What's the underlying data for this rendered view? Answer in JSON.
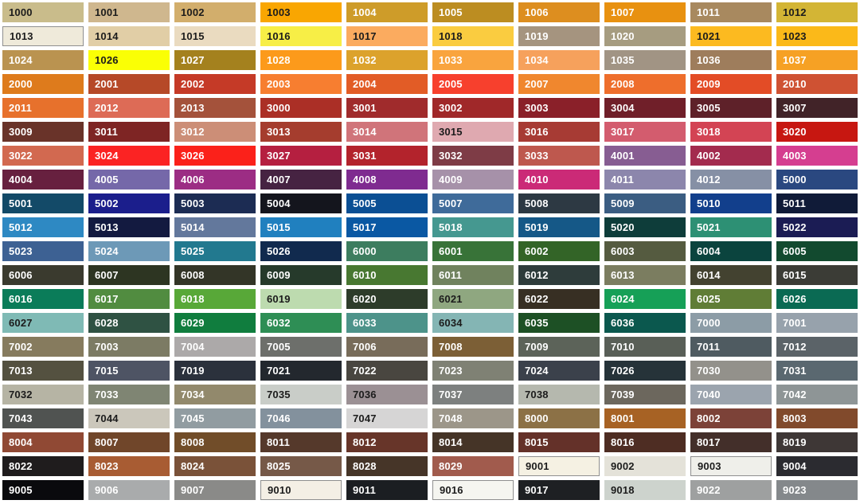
{
  "page": {
    "background": "#FFFFFF"
  },
  "grid": {
    "columns": 10,
    "rows": 21
  },
  "text_colors": {
    "dark": "#1C1C1C",
    "light": "#FFFFFF"
  },
  "light_swatch_border_color": "#8F8F8F",
  "swatches": [
    {
      "code": "1000",
      "color": "#C9BC8B",
      "text": "dark"
    },
    {
      "code": "1001",
      "color": "#CFB78E",
      "text": "dark"
    },
    {
      "code": "1002",
      "color": "#D2AE6C",
      "text": "dark"
    },
    {
      "code": "1003",
      "color": "#F9A602",
      "text": "dark"
    },
    {
      "code": "1004",
      "color": "#CE9C29",
      "text": "light"
    },
    {
      "code": "1005",
      "color": "#BC8D21",
      "text": "light"
    },
    {
      "code": "1006",
      "color": "#DD8E1F",
      "text": "light"
    },
    {
      "code": "1007",
      "color": "#E89110",
      "text": "light"
    },
    {
      "code": "1011",
      "color": "#A8895F",
      "text": "light"
    },
    {
      "code": "1012",
      "color": "#D3B535",
      "text": "dark"
    },
    {
      "code": "1013",
      "color": "#EFEADA",
      "text": "dark"
    },
    {
      "code": "1014",
      "color": "#E1CEA6",
      "text": "dark"
    },
    {
      "code": "1015",
      "color": "#EADBC0",
      "text": "dark"
    },
    {
      "code": "1016",
      "color": "#F7EE46",
      "text": "dark"
    },
    {
      "code": "1017",
      "color": "#FBAB5F",
      "text": "dark"
    },
    {
      "code": "1018",
      "color": "#FACC40",
      "text": "dark"
    },
    {
      "code": "1019",
      "color": "#A5947F",
      "text": "light"
    },
    {
      "code": "1020",
      "color": "#A69C80",
      "text": "light"
    },
    {
      "code": "1021",
      "color": "#FCBA20",
      "text": "dark"
    },
    {
      "code": "1023",
      "color": "#FBB919",
      "text": "dark"
    },
    {
      "code": "1024",
      "color": "#BA9350",
      "text": "light"
    },
    {
      "code": "1026",
      "color": "#FAFF05",
      "text": "dark"
    },
    {
      "code": "1027",
      "color": "#A4811E",
      "text": "light"
    },
    {
      "code": "1028",
      "color": "#FC9A1B",
      "text": "light"
    },
    {
      "code": "1032",
      "color": "#DCA22C",
      "text": "light"
    },
    {
      "code": "1033",
      "color": "#F9A43E",
      "text": "light"
    },
    {
      "code": "1034",
      "color": "#F6A15C",
      "text": "light"
    },
    {
      "code": "1035",
      "color": "#A19484",
      "text": "light"
    },
    {
      "code": "1036",
      "color": "#9E7D5C",
      "text": "light"
    },
    {
      "code": "1037",
      "color": "#F6A124",
      "text": "light"
    },
    {
      "code": "2000",
      "color": "#DE7B1C",
      "text": "light"
    },
    {
      "code": "2001",
      "color": "#B64928",
      "text": "light"
    },
    {
      "code": "2002",
      "color": "#C53A27",
      "text": "light"
    },
    {
      "code": "2003",
      "color": "#F77E30",
      "text": "light"
    },
    {
      "code": "2004",
      "color": "#E25C26",
      "text": "light"
    },
    {
      "code": "2005",
      "color": "#F7402D",
      "text": "light"
    },
    {
      "code": "2007",
      "color": "#F0872E",
      "text": "light"
    },
    {
      "code": "2008",
      "color": "#EE6E2C",
      "text": "light"
    },
    {
      "code": "2009",
      "color": "#E34C26",
      "text": "light"
    },
    {
      "code": "2010",
      "color": "#CF5233",
      "text": "light"
    },
    {
      "code": "2011",
      "color": "#E7712C",
      "text": "light"
    },
    {
      "code": "2012",
      "color": "#DD6B56",
      "text": "light"
    },
    {
      "code": "2013",
      "color": "#A4523B",
      "text": "light"
    },
    {
      "code": "3000",
      "color": "#AB2F26",
      "text": "light"
    },
    {
      "code": "3001",
      "color": "#A02B2C",
      "text": "light"
    },
    {
      "code": "3002",
      "color": "#A02829",
      "text": "light"
    },
    {
      "code": "3003",
      "color": "#8A2029",
      "text": "light"
    },
    {
      "code": "3004",
      "color": "#701F29",
      "text": "light"
    },
    {
      "code": "3005",
      "color": "#5E2129",
      "text": "light"
    },
    {
      "code": "3007",
      "color": "#412328",
      "text": "light"
    },
    {
      "code": "3009",
      "color": "#693329",
      "text": "light"
    },
    {
      "code": "3011",
      "color": "#7E2524",
      "text": "light"
    },
    {
      "code": "3012",
      "color": "#CC8E77",
      "text": "light"
    },
    {
      "code": "3013",
      "color": "#A53D2E",
      "text": "light"
    },
    {
      "code": "3014",
      "color": "#D0747A",
      "text": "light"
    },
    {
      "code": "3015",
      "color": "#DFA9B0",
      "text": "dark"
    },
    {
      "code": "3016",
      "color": "#A73B34",
      "text": "light"
    },
    {
      "code": "3017",
      "color": "#D35C6E",
      "text": "light"
    },
    {
      "code": "3018",
      "color": "#D34454",
      "text": "light"
    },
    {
      "code": "3020",
      "color": "#C71711",
      "text": "light"
    },
    {
      "code": "3022",
      "color": "#D26950",
      "text": "light"
    },
    {
      "code": "3024",
      "color": "#FB2323",
      "text": "light"
    },
    {
      "code": "3026",
      "color": "#FB211A",
      "text": "light"
    },
    {
      "code": "3027",
      "color": "#B51F40",
      "text": "light"
    },
    {
      "code": "3031",
      "color": "#B3232C",
      "text": "light"
    },
    {
      "code": "3032",
      "color": "#7E3C46",
      "text": "light"
    },
    {
      "code": "3033",
      "color": "#BE584E",
      "text": "light"
    },
    {
      "code": "4001",
      "color": "#875D92",
      "text": "light"
    },
    {
      "code": "4002",
      "color": "#A32B4E",
      "text": "light"
    },
    {
      "code": "4003",
      "color": "#D53E90",
      "text": "light"
    },
    {
      "code": "4004",
      "color": "#67203F",
      "text": "light"
    },
    {
      "code": "4005",
      "color": "#7568A9",
      "text": "light"
    },
    {
      "code": "4006",
      "color": "#9C2D84",
      "text": "light"
    },
    {
      "code": "4007",
      "color": "#462342",
      "text": "light"
    },
    {
      "code": "4008",
      "color": "#7F2B90",
      "text": "light"
    },
    {
      "code": "4009",
      "color": "#A691A9",
      "text": "light"
    },
    {
      "code": "4010",
      "color": "#CB2A77",
      "text": "light"
    },
    {
      "code": "4011",
      "color": "#8C86AC",
      "text": "light"
    },
    {
      "code": "4012",
      "color": "#8690A5",
      "text": "light"
    },
    {
      "code": "5000",
      "color": "#2A4880",
      "text": "light"
    },
    {
      "code": "5001",
      "color": "#134A68",
      "text": "light"
    },
    {
      "code": "5002",
      "color": "#1B1E8C",
      "text": "light"
    },
    {
      "code": "5003",
      "color": "#1C2C53",
      "text": "light"
    },
    {
      "code": "5004",
      "color": "#14151D",
      "text": "light"
    },
    {
      "code": "5005",
      "color": "#0B4F94",
      "text": "light"
    },
    {
      "code": "5007",
      "color": "#3F6B9A",
      "text": "light"
    },
    {
      "code": "5008",
      "color": "#2D3943",
      "text": "light"
    },
    {
      "code": "5009",
      "color": "#3B5D82",
      "text": "light"
    },
    {
      "code": "5010",
      "color": "#123F8C",
      "text": "light"
    },
    {
      "code": "5011",
      "color": "#101B38",
      "text": "light"
    },
    {
      "code": "5012",
      "color": "#2E89C3",
      "text": "light"
    },
    {
      "code": "5013",
      "color": "#131A40",
      "text": "light"
    },
    {
      "code": "5014",
      "color": "#63789C",
      "text": "light"
    },
    {
      "code": "5015",
      "color": "#2080BF",
      "text": "light"
    },
    {
      "code": "5017",
      "color": "#0A58A3",
      "text": "light"
    },
    {
      "code": "5018",
      "color": "#459890",
      "text": "light"
    },
    {
      "code": "5019",
      "color": "#155887",
      "text": "light"
    },
    {
      "code": "5020",
      "color": "#0E3D3A",
      "text": "light"
    },
    {
      "code": "5021",
      "color": "#2D9074",
      "text": "light"
    },
    {
      "code": "5022",
      "color": "#1B1C54",
      "text": "light"
    },
    {
      "code": "5023",
      "color": "#3D6193",
      "text": "light"
    },
    {
      "code": "5024",
      "color": "#6D99B7",
      "text": "light"
    },
    {
      "code": "5025",
      "color": "#22798F",
      "text": "light"
    },
    {
      "code": "5026",
      "color": "#112A4E",
      "text": "light"
    },
    {
      "code": "6000",
      "color": "#3D7D5F",
      "text": "light"
    },
    {
      "code": "6001",
      "color": "#387338",
      "text": "light"
    },
    {
      "code": "6002",
      "color": "#336427",
      "text": "light"
    },
    {
      "code": "6003",
      "color": "#555B40",
      "text": "light"
    },
    {
      "code": "6004",
      "color": "#0B443E",
      "text": "light"
    },
    {
      "code": "6005",
      "color": "#124A2F",
      "text": "light"
    },
    {
      "code": "6006",
      "color": "#3A3A2E",
      "text": "light"
    },
    {
      "code": "6007",
      "color": "#2D3522",
      "text": "light"
    },
    {
      "code": "6008",
      "color": "#333527",
      "text": "light"
    },
    {
      "code": "6009",
      "color": "#263A2B",
      "text": "light"
    },
    {
      "code": "6010",
      "color": "#487831",
      "text": "light"
    },
    {
      "code": "6011",
      "color": "#70825E",
      "text": "light"
    },
    {
      "code": "6012",
      "color": "#2E3C3B",
      "text": "light"
    },
    {
      "code": "6013",
      "color": "#7B7D60",
      "text": "light"
    },
    {
      "code": "6014",
      "color": "#434230",
      "text": "light"
    },
    {
      "code": "6015",
      "color": "#3B3C36",
      "text": "light"
    },
    {
      "code": "6016",
      "color": "#0A7C59",
      "text": "light"
    },
    {
      "code": "6017",
      "color": "#518C40",
      "text": "light"
    },
    {
      "code": "6018",
      "color": "#58A838",
      "text": "light"
    },
    {
      "code": "6019",
      "color": "#BDDBAF",
      "text": "dark"
    },
    {
      "code": "6020",
      "color": "#2D3C2A",
      "text": "light"
    },
    {
      "code": "6021",
      "color": "#8FA780",
      "text": "dark"
    },
    {
      "code": "6022",
      "color": "#372F23",
      "text": "light"
    },
    {
      "code": "6024",
      "color": "#16A057",
      "text": "light"
    },
    {
      "code": "6025",
      "color": "#607D36",
      "text": "light"
    },
    {
      "code": "6026",
      "color": "#0A6A53",
      "text": "light"
    },
    {
      "code": "6027",
      "color": "#7FBAB5",
      "text": "dark"
    },
    {
      "code": "6028",
      "color": "#2F5243",
      "text": "light"
    },
    {
      "code": "6029",
      "color": "#107D3E",
      "text": "light"
    },
    {
      "code": "6032",
      "color": "#2E8E55",
      "text": "light"
    },
    {
      "code": "6033",
      "color": "#4D938A",
      "text": "light"
    },
    {
      "code": "6034",
      "color": "#84B5B4",
      "text": "dark"
    },
    {
      "code": "6035",
      "color": "#1D5025",
      "text": "light"
    },
    {
      "code": "6036",
      "color": "#0B584E",
      "text": "light"
    },
    {
      "code": "7000",
      "color": "#8C9CA6",
      "text": "light"
    },
    {
      "code": "7001",
      "color": "#97A2AC",
      "text": "light"
    },
    {
      "code": "7002",
      "color": "#867B5E",
      "text": "light"
    },
    {
      "code": "7003",
      "color": "#7C7B64",
      "text": "light"
    },
    {
      "code": "7004",
      "color": "#ACA9A9",
      "text": "light"
    },
    {
      "code": "7005",
      "color": "#6D6F6B",
      "text": "light"
    },
    {
      "code": "7006",
      "color": "#786C5A",
      "text": "light"
    },
    {
      "code": "7008",
      "color": "#7C5F36",
      "text": "light"
    },
    {
      "code": "7009",
      "color": "#5C6359",
      "text": "light"
    },
    {
      "code": "7010",
      "color": "#595F57",
      "text": "light"
    },
    {
      "code": "7011",
      "color": "#4F5B61",
      "text": "light"
    },
    {
      "code": "7012",
      "color": "#5B6368",
      "text": "light"
    },
    {
      "code": "7013",
      "color": "#545140",
      "text": "light"
    },
    {
      "code": "7015",
      "color": "#4E5464",
      "text": "light"
    },
    {
      "code": "7019",
      "color": "#2B313C",
      "text": "light"
    },
    {
      "code": "7021",
      "color": "#23282E",
      "text": "light"
    },
    {
      "code": "7022",
      "color": "#494640",
      "text": "light"
    },
    {
      "code": "7023",
      "color": "#7F8174",
      "text": "light"
    },
    {
      "code": "7024",
      "color": "#3B414B",
      "text": "light"
    },
    {
      "code": "7026",
      "color": "#263339",
      "text": "light"
    },
    {
      "code": "7030",
      "color": "#93918B",
      "text": "light"
    },
    {
      "code": "7031",
      "color": "#5A6870",
      "text": "light"
    },
    {
      "code": "7032",
      "color": "#B6B4A4",
      "text": "dark"
    },
    {
      "code": "7033",
      "color": "#7F8573",
      "text": "light"
    },
    {
      "code": "7034",
      "color": "#92896C",
      "text": "light"
    },
    {
      "code": "7035",
      "color": "#C9CDC8",
      "text": "dark"
    },
    {
      "code": "7036",
      "color": "#9B9094",
      "text": "dark"
    },
    {
      "code": "7037",
      "color": "#7D807F",
      "text": "light"
    },
    {
      "code": "7038",
      "color": "#B5B8AE",
      "text": "dark"
    },
    {
      "code": "7039",
      "color": "#6C675D",
      "text": "light"
    },
    {
      "code": "7040",
      "color": "#9BA4AE",
      "text": "light"
    },
    {
      "code": "7042",
      "color": "#8E9596",
      "text": "light"
    },
    {
      "code": "7043",
      "color": "#505351",
      "text": "light"
    },
    {
      "code": "7044",
      "color": "#CBC7BB",
      "text": "dark"
    },
    {
      "code": "7045",
      "color": "#919CA1",
      "text": "light"
    },
    {
      "code": "7046",
      "color": "#83919D",
      "text": "light"
    },
    {
      "code": "7047",
      "color": "#D6D5D5",
      "text": "dark"
    },
    {
      "code": "7048",
      "color": "#9C9689",
      "text": "light"
    },
    {
      "code": "8000",
      "color": "#8C7146",
      "text": "light"
    },
    {
      "code": "8001",
      "color": "#A76224",
      "text": "light"
    },
    {
      "code": "8002",
      "color": "#7C4238",
      "text": "light"
    },
    {
      "code": "8003",
      "color": "#814A2C",
      "text": "light"
    },
    {
      "code": "8004",
      "color": "#904934",
      "text": "light"
    },
    {
      "code": "8007",
      "color": "#70462A",
      "text": "light"
    },
    {
      "code": "8008",
      "color": "#714D29",
      "text": "light"
    },
    {
      "code": "8011",
      "color": "#55392B",
      "text": "light"
    },
    {
      "code": "8012",
      "color": "#673529",
      "text": "light"
    },
    {
      "code": "8014",
      "color": "#453427",
      "text": "light"
    },
    {
      "code": "8015",
      "color": "#643129",
      "text": "light"
    },
    {
      "code": "8016",
      "color": "#4E2D23",
      "text": "light"
    },
    {
      "code": "8017",
      "color": "#432F2A",
      "text": "light"
    },
    {
      "code": "8019",
      "color": "#3E3736",
      "text": "light"
    },
    {
      "code": "8022",
      "color": "#1F1C1D",
      "text": "light"
    },
    {
      "code": "8023",
      "color": "#A85C33",
      "text": "light"
    },
    {
      "code": "8024",
      "color": "#7A5239",
      "text": "light"
    },
    {
      "code": "8025",
      "color": "#765948",
      "text": "light"
    },
    {
      "code": "8028",
      "color": "#463528",
      "text": "light"
    },
    {
      "code": "8029",
      "color": "#A15B4D",
      "text": "light"
    },
    {
      "code": "9001",
      "color": "#F5F1E3",
      "text": "dark"
    },
    {
      "code": "9002",
      "color": "#E4E2D9",
      "text": "dark"
    },
    {
      "code": "9003",
      "color": "#EFEFEA",
      "text": "dark"
    },
    {
      "code": "9004",
      "color": "#2B2B30",
      "text": "light"
    },
    {
      "code": "9005",
      "color": "#0A0A0D",
      "text": "light"
    },
    {
      "code": "9006",
      "color": "#A9ABAC",
      "text": "light"
    },
    {
      "code": "9007",
      "color": "#8A8A88",
      "text": "light"
    },
    {
      "code": "9010",
      "color": "#F4EFE5",
      "text": "dark"
    },
    {
      "code": "9011",
      "color": "#1B1E22",
      "text": "light"
    },
    {
      "code": "9016",
      "color": "#F5F5F0",
      "text": "dark"
    },
    {
      "code": "9017",
      "color": "#1E2023",
      "text": "light"
    },
    {
      "code": "9018",
      "color": "#CDD3CD",
      "text": "dark"
    },
    {
      "code": "9022",
      "color": "#9EA0A0",
      "text": "light"
    },
    {
      "code": "9023",
      "color": "#84888B",
      "text": "light"
    }
  ]
}
